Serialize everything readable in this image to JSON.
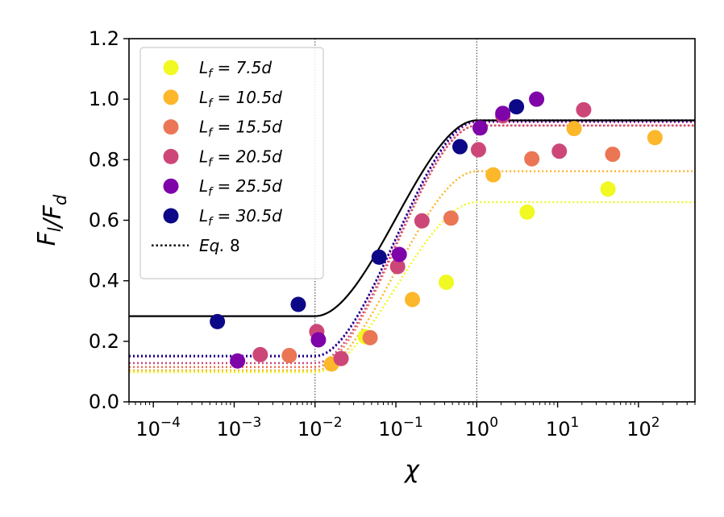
{
  "chart_data": {
    "type": "scatter",
    "title": "",
    "xlabel": "χ",
    "ylabel": "F_l/F_d",
    "xscale": "log",
    "xlim": [
      5e-05,
      500
    ],
    "ylim": [
      0.0,
      1.2
    ],
    "yticks": [
      "0.0",
      "0.2",
      "0.4",
      "0.6",
      "0.8",
      "1.0",
      "1.2"
    ],
    "xticks": [
      {
        "base": "10",
        "exp": "−4",
        "value": 0.0001
      },
      {
        "base": "10",
        "exp": "−3",
        "value": 0.001
      },
      {
        "base": "10",
        "exp": "−2",
        "value": 0.01
      },
      {
        "base": "10",
        "exp": "−1",
        "value": 0.1
      },
      {
        "base": "10",
        "exp": "0",
        "value": 1
      },
      {
        "base": "10",
        "exp": "1",
        "value": 10
      },
      {
        "base": "10",
        "exp": "2",
        "value": 100
      }
    ],
    "vlines": [
      0.01,
      1.0
    ],
    "legend_position": "top-left",
    "series": [
      {
        "name": "L_f = 7.5d",
        "label_main": "L",
        "label_sub": "f",
        "label_rest": " = 7.5d",
        "color": "#F0F921",
        "points": [
          [
            0.042,
            0.215
          ],
          [
            0.42,
            0.395
          ],
          [
            4.2,
            0.627
          ],
          [
            42,
            0.703
          ]
        ],
        "fit": {
          "low": 0.098,
          "high": 0.66
        }
      },
      {
        "name": "L_f = 10.5d",
        "label_main": "L",
        "label_sub": "f",
        "label_rest": " = 10.5d",
        "color": "#FCB72A",
        "points": [
          [
            0.016,
            0.125
          ],
          [
            0.16,
            0.338
          ],
          [
            1.6,
            0.75
          ],
          [
            16,
            0.903
          ],
          [
            160,
            0.873
          ]
        ],
        "fit": {
          "low": 0.104,
          "high": 0.762
        }
      },
      {
        "name": "L_f = 15.5d",
        "label_main": "L",
        "label_sub": "f",
        "label_rest": " = 15.5d",
        "color": "#EB7655",
        "points": [
          [
            0.0048,
            0.153
          ],
          [
            0.048,
            0.212
          ],
          [
            0.48,
            0.607
          ],
          [
            4.8,
            0.803
          ],
          [
            48,
            0.818
          ]
        ],
        "fit": {
          "low": 0.115,
          "high": 0.913
        }
      },
      {
        "name": "L_f = 20.5d",
        "label_main": "L",
        "label_sub": "f",
        "label_rest": " = 20.5d",
        "color": "#CC4778",
        "points": [
          [
            0.0021,
            0.156
          ],
          [
            0.0105,
            0.232
          ],
          [
            0.021,
            0.143
          ],
          [
            0.105,
            0.447
          ],
          [
            0.21,
            0.598
          ],
          [
            1.05,
            0.833
          ],
          [
            2.1,
            0.945
          ],
          [
            10.5,
            0.828
          ],
          [
            21,
            0.965
          ]
        ],
        "fit": {
          "low": 0.128,
          "high": 0.913
        }
      },
      {
        "name": "L_f = 25.5d",
        "label_main": "L",
        "label_sub": "f",
        "label_rest": " = 25.5d",
        "color": "#7E03A8",
        "points": [
          [
            0.0011,
            0.135
          ],
          [
            0.011,
            0.205
          ],
          [
            0.11,
            0.487
          ],
          [
            1.1,
            0.905
          ],
          [
            2.1,
            0.953
          ],
          [
            5.5,
            1.0
          ]
        ],
        "fit": {
          "low": 0.15,
          "high": 0.925
        }
      },
      {
        "name": "L_f = 30.5d",
        "label_main": "L",
        "label_sub": "f",
        "label_rest": " = 30.5d",
        "color": "#0D0887",
        "points": [
          [
            0.00062,
            0.265
          ],
          [
            0.0062,
            0.322
          ],
          [
            0.062,
            0.478
          ],
          [
            0.62,
            0.843
          ],
          [
            3.1,
            0.975
          ]
        ],
        "fit": {
          "low": 0.152,
          "high": 0.93
        }
      }
    ],
    "main_curve": {
      "color": "#000000",
      "low": 0.283,
      "high": 0.93
    },
    "eq_legend": {
      "label_main": "Eq.",
      "label_rest": " 8"
    }
  }
}
